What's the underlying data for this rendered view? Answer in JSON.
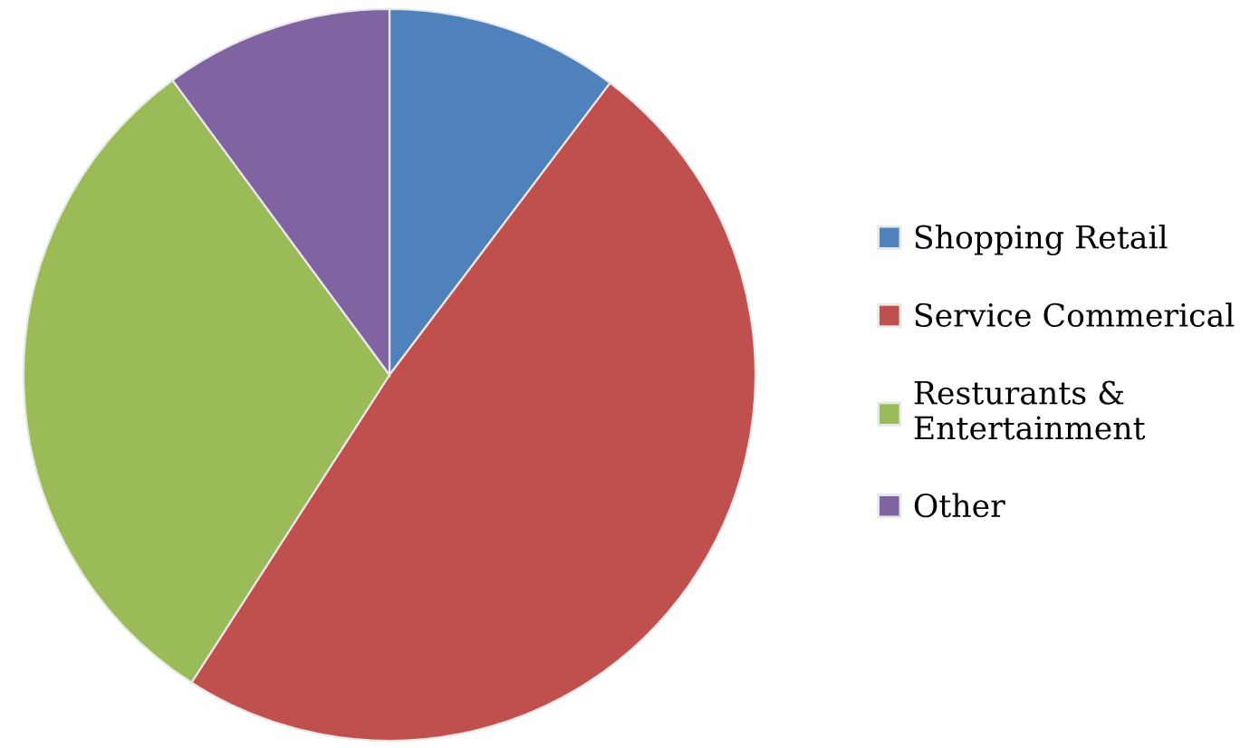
{
  "chart_data": {
    "type": "pie",
    "categories": [
      "Shopping Retail",
      "Service Commerical",
      "Resturants &\nEntertainment",
      "Other"
    ],
    "values": [
      10.3,
      48.8,
      30.8,
      10.1
    ],
    "colors": [
      "#4f81bd",
      "#c0504d",
      "#9bbb59",
      "#8064a2"
    ],
    "legend": "right"
  }
}
